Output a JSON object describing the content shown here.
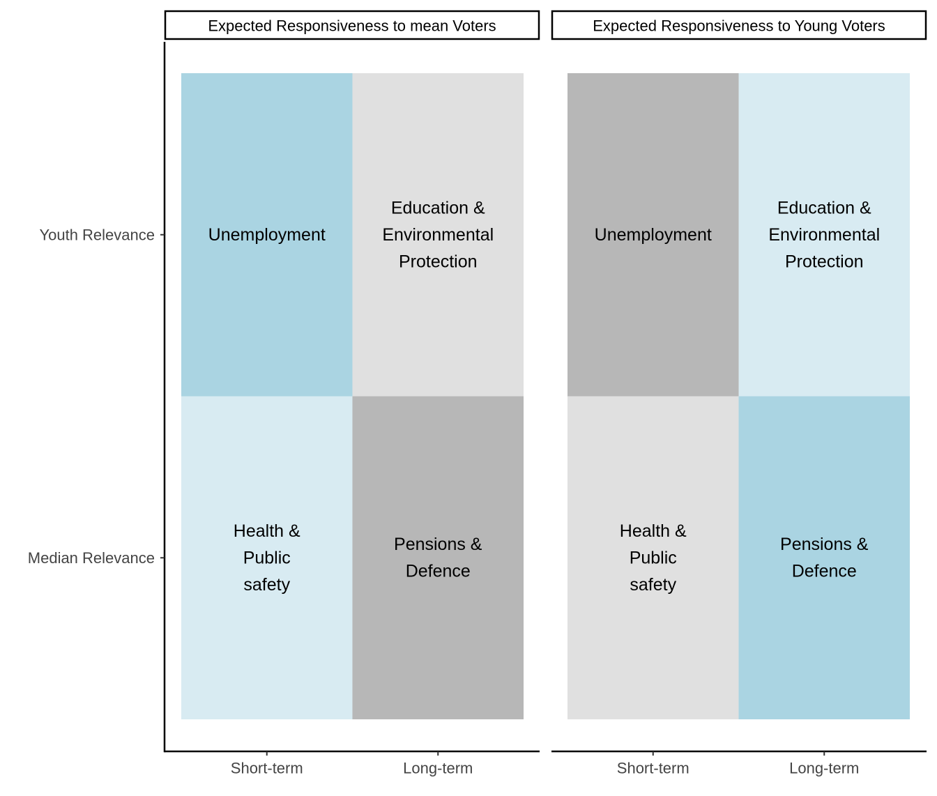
{
  "chart_data": {
    "type": "heatmap",
    "y_categories": [
      "Youth Relevance",
      "Median Relevance"
    ],
    "x_categories": [
      "Short-term",
      "Long-term"
    ],
    "colors": {
      "high": "#aad4e2",
      "medium_high": "#d8ebf2",
      "medium_low": "#e0e0e0",
      "low": "#b7b7b7"
    },
    "panels": [
      {
        "strip": "Expected Responsiveness to mean Voters",
        "cells": [
          {
            "row": "Youth Relevance",
            "col": "Short-term",
            "label": [
              "Unemployment"
            ],
            "fill": "high"
          },
          {
            "row": "Youth Relevance",
            "col": "Long-term",
            "label": [
              "Education &",
              "Environmental",
              "Protection"
            ],
            "fill": "medium_low"
          },
          {
            "row": "Median Relevance",
            "col": "Short-term",
            "label": [
              "Health &",
              "Public",
              "safety"
            ],
            "fill": "medium_high"
          },
          {
            "row": "Median Relevance",
            "col": "Long-term",
            "label": [
              "Pensions &",
              "Defence"
            ],
            "fill": "low"
          }
        ]
      },
      {
        "strip": "Expected Responsiveness to Young Voters",
        "cells": [
          {
            "row": "Youth Relevance",
            "col": "Short-term",
            "label": [
              "Unemployment"
            ],
            "fill": "low"
          },
          {
            "row": "Youth Relevance",
            "col": "Long-term",
            "label": [
              "Education &",
              "Environmental",
              "Protection"
            ],
            "fill": "medium_high"
          },
          {
            "row": "Median Relevance",
            "col": "Short-term",
            "label": [
              "Health &",
              "Public",
              "safety"
            ],
            "fill": "medium_low"
          },
          {
            "row": "Median Relevance",
            "col": "Long-term",
            "label": [
              "Pensions &",
              "Defence"
            ],
            "fill": "high"
          }
        ]
      }
    ]
  }
}
